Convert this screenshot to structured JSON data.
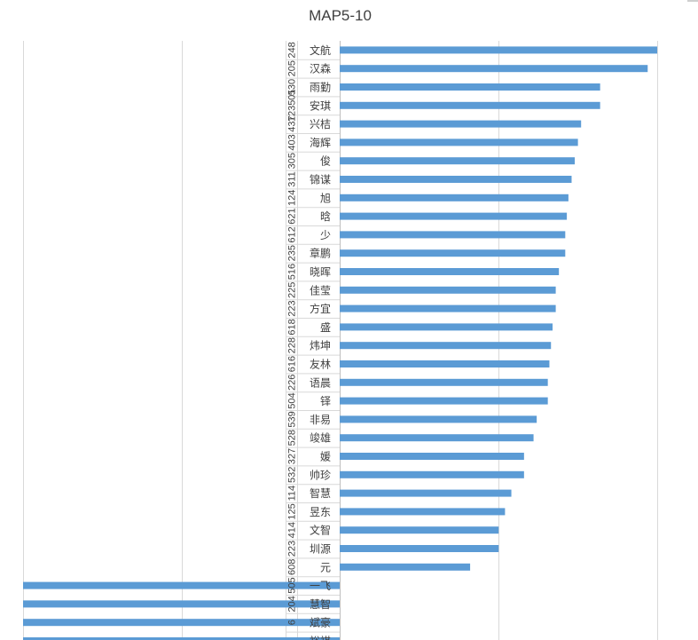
{
  "chart_data": {
    "type": "bar",
    "orientation": "horizontal",
    "title": "MAP5-10",
    "categories": [
      {
        "code": "248",
        "name": "文航"
      },
      {
        "code": "205",
        "name": "汉森"
      },
      {
        "code": "530",
        "name": "雨勤"
      },
      {
        "code": "123501",
        "name": "安琪"
      },
      {
        "code": "437",
        "name": "兴桔"
      },
      {
        "code": "403",
        "name": "海辉"
      },
      {
        "code": "305",
        "name": "俊"
      },
      {
        "code": "311",
        "name": "锦谋"
      },
      {
        "code": "124",
        "name": "旭"
      },
      {
        "code": "621",
        "name": "晗"
      },
      {
        "code": "612",
        "name": "少"
      },
      {
        "code": "235",
        "name": "章鹏"
      },
      {
        "code": "516",
        "name": "晓晖"
      },
      {
        "code": "225",
        "name": "佳莹"
      },
      {
        "code": "223",
        "name": "方宜"
      },
      {
        "code": "618",
        "name": "盛"
      },
      {
        "code": "228",
        "name": "炜坤"
      },
      {
        "code": "616",
        "name": "友林"
      },
      {
        "code": "226",
        "name": "语晨"
      },
      {
        "code": "504",
        "name": "铎"
      },
      {
        "code": "539",
        "name": "非易"
      },
      {
        "code": "528",
        "name": "竣雄"
      },
      {
        "code": "327",
        "name": "媛"
      },
      {
        "code": "532",
        "name": "帅珍"
      },
      {
        "code": "114",
        "name": "智慧"
      },
      {
        "code": "125",
        "name": "昱东"
      },
      {
        "code": "414",
        "name": "文智"
      },
      {
        "code": "223",
        "name": "圳源"
      },
      {
        "code": "608",
        "name": "元"
      },
      {
        "code": "505",
        "name": "一飞"
      },
      {
        "code": "204",
        "name": "慧智"
      },
      {
        "code": "6",
        "name": "斌豪"
      },
      {
        "code": "",
        "name": "裕祺"
      }
    ],
    "values": [
      1.0,
      0.97,
      0.82,
      0.82,
      0.76,
      0.75,
      0.74,
      0.73,
      0.72,
      0.715,
      0.71,
      0.71,
      0.69,
      0.68,
      0.68,
      0.67,
      0.665,
      0.66,
      0.655,
      0.655,
      0.62,
      0.61,
      0.58,
      0.58,
      0.54,
      0.52,
      0.5,
      0.5,
      0.41,
      -1.0,
      -1.0,
      -1.0,
      -1.0
    ],
    "xlim": [
      -1.0,
      1.0
    ],
    "grid": true,
    "legend": "none",
    "bar_color": "#5B9BD5",
    "grid_color": "#d9d9d9",
    "text_color": "#404040"
  }
}
